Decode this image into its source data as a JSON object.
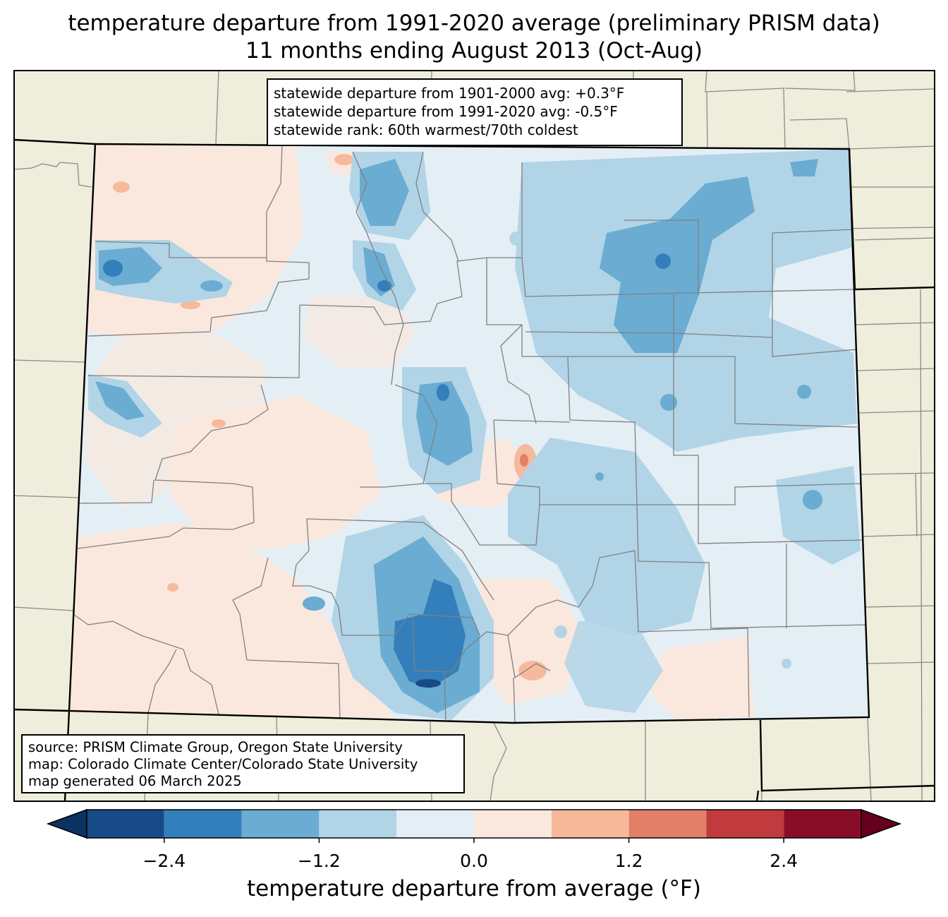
{
  "title": {
    "line1": "temperature departure from 1991-2020 average (preliminary PRISM data)",
    "line2": "11 months ending August 2013 (Oct-Aug)"
  },
  "stats": {
    "line1": "statewide departure from 1901-2000 avg: +0.3°F",
    "line2": "statewide departure from 1991-2020 avg: -0.5°F",
    "line3": "statewide rank: 60th warmest/70th coldest"
  },
  "source": {
    "line1": "source: PRISM Climate Group, Oregon State University",
    "line2": "map: Colorado Climate Center/Colorado State University",
    "line3": "map generated 06 March 2025"
  },
  "colorbar": {
    "label": "temperature departure from average (°F)",
    "ticks": [
      "−2.4",
      "−1.2",
      "0.0",
      "1.2",
      "2.4"
    ],
    "bins": [
      {
        "min": -3.0,
        "max": -2.4,
        "color": "#174a87"
      },
      {
        "min": -2.4,
        "max": -1.8,
        "color": "#327fbb"
      },
      {
        "min": -1.8,
        "max": -1.2,
        "color": "#6aacd2"
      },
      {
        "min": -1.2,
        "max": -0.6,
        "color": "#b1d4e7"
      },
      {
        "min": -0.6,
        "max": 0.0,
        "color": "#e4eef5"
      },
      {
        "min": 0.0,
        "max": 0.6,
        "color": "#fae8de"
      },
      {
        "min": 0.6,
        "max": 1.2,
        "color": "#f7b99c"
      },
      {
        "min": 1.2,
        "max": 1.8,
        "color": "#e27f68"
      },
      {
        "min": 1.8,
        "max": 2.4,
        "color": "#c03a3e"
      },
      {
        "min": 2.4,
        "max": 3.0,
        "color": "#8a0d27"
      }
    ],
    "under_color": "#0b3260",
    "over_color": "#66001e"
  },
  "map_colors": {
    "land_background": "#efeddb",
    "neutral_cool": "#e4eef5",
    "county_line": "#808080"
  }
}
